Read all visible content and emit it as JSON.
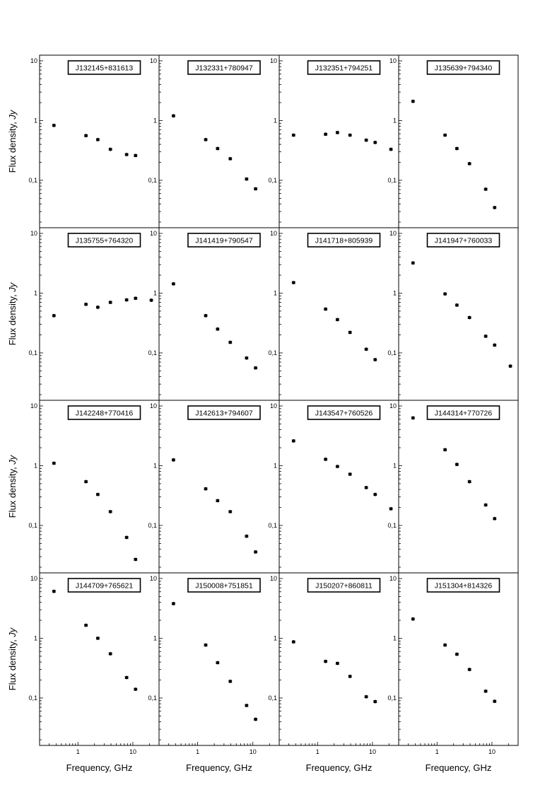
{
  "figure": {
    "ylabel_text": "Flux density, ",
    "ylabel_unit": "Jy",
    "xlabel": "Frequency, GHz"
  },
  "chart_data": [
    {
      "type": "scatter",
      "title": "J132145+831613",
      "x": [
        0.365,
        1.4,
        2.3,
        3.9,
        7.7,
        11.2
      ],
      "y": [
        0.83,
        0.56,
        0.48,
        0.33,
        0.27,
        0.26
      ],
      "xlim": [
        0.2,
        30
      ],
      "ylim": [
        0.02,
        10
      ],
      "xscale": "log",
      "yscale": "log",
      "yticks": [
        "10",
        "1",
        "0,1"
      ],
      "xticks": [
        "1",
        "10"
      ],
      "xlabel": "Frequency, GHz",
      "ylabel": "Flux density, Jy"
    },
    {
      "type": "scatter",
      "title": "J132331+780947",
      "x": [
        0.365,
        1.4,
        2.3,
        3.9,
        7.7,
        11.2
      ],
      "y": [
        1.2,
        0.48,
        0.34,
        0.23,
        0.105,
        0.072
      ],
      "xlim": [
        0.2,
        30
      ],
      "ylim": [
        0.02,
        10
      ],
      "xscale": "log",
      "yscale": "log",
      "yticks": [
        "10",
        "1",
        "0,1"
      ],
      "xticks": [
        "1",
        "10"
      ],
      "xlabel": "Frequency, GHz",
      "ylabel": "Flux density, Jy"
    },
    {
      "type": "scatter",
      "title": "J132351+794251",
      "x": [
        0.365,
        1.4,
        2.3,
        3.9,
        7.7,
        11.2,
        21.7
      ],
      "y": [
        0.57,
        0.59,
        0.63,
        0.57,
        0.47,
        0.43,
        0.33
      ],
      "xlim": [
        0.2,
        30
      ],
      "ylim": [
        0.02,
        10
      ],
      "xscale": "log",
      "yscale": "log",
      "yticks": [
        "10",
        "1",
        "0,1"
      ],
      "xticks": [
        "1",
        "10"
      ],
      "xlabel": "Frequency, GHz",
      "ylabel": "Flux density, Jy"
    },
    {
      "type": "scatter",
      "title": "J135639+794340",
      "x": [
        0.365,
        1.4,
        2.3,
        3.9,
        7.7,
        11.2
      ],
      "y": [
        2.1,
        0.57,
        0.34,
        0.19,
        0.071,
        0.035
      ],
      "xlim": [
        0.2,
        30
      ],
      "ylim": [
        0.02,
        10
      ],
      "xscale": "log",
      "yscale": "log",
      "yticks": [
        "10",
        "1",
        "0,1"
      ],
      "xticks": [
        "1",
        "10"
      ],
      "xlabel": "Frequency, GHz",
      "ylabel": "Flux density, Jy"
    },
    {
      "type": "scatter",
      "title": "J135755+764320",
      "x": [
        0.365,
        1.4,
        2.3,
        3.9,
        7.7,
        11.2,
        21.7
      ],
      "y": [
        0.42,
        0.65,
        0.58,
        0.7,
        0.77,
        0.82,
        0.76
      ],
      "xlim": [
        0.2,
        30
      ],
      "ylim": [
        0.02,
        10
      ],
      "xscale": "log",
      "yscale": "log",
      "yticks": [
        "10",
        "1",
        "0,1"
      ],
      "xticks": [
        "1",
        "10"
      ],
      "xlabel": "Frequency, GHz",
      "ylabel": "Flux density, Jy"
    },
    {
      "type": "scatter",
      "title": "J141419+790547",
      "x": [
        0.365,
        1.4,
        2.3,
        3.9,
        7.7,
        11.2
      ],
      "y": [
        1.43,
        0.42,
        0.25,
        0.15,
        0.082,
        0.056
      ],
      "xlim": [
        0.2,
        30
      ],
      "ylim": [
        0.02,
        10
      ],
      "xscale": "log",
      "yscale": "log",
      "yticks": [
        "10",
        "1",
        "0,1"
      ],
      "xticks": [
        "1",
        "10"
      ],
      "xlabel": "Frequency, GHz",
      "ylabel": "Flux density, Jy"
    },
    {
      "type": "scatter",
      "title": "J141718+805939",
      "x": [
        0.365,
        1.4,
        2.3,
        3.9,
        7.7,
        11.2
      ],
      "y": [
        1.5,
        0.54,
        0.36,
        0.22,
        0.115,
        0.077
      ],
      "xlim": [
        0.2,
        30
      ],
      "ylim": [
        0.02,
        10
      ],
      "xscale": "log",
      "yscale": "log",
      "yticks": [
        "10",
        "1",
        "0,1"
      ],
      "xticks": [
        "1",
        "10"
      ],
      "xlabel": "Frequency, GHz",
      "ylabel": "Flux density, Jy"
    },
    {
      "type": "scatter",
      "title": "J141947+760033",
      "x": [
        0.365,
        1.4,
        2.3,
        3.9,
        7.7,
        11.2,
        21.7
      ],
      "y": [
        3.2,
        0.97,
        0.63,
        0.39,
        0.19,
        0.135,
        0.06
      ],
      "xlim": [
        0.2,
        30
      ],
      "ylim": [
        0.02,
        10
      ],
      "xscale": "log",
      "yscale": "log",
      "yticks": [
        "10",
        "1",
        "0,1"
      ],
      "xticks": [
        "1",
        "10"
      ],
      "xlabel": "Frequency, GHz",
      "ylabel": "Flux density, Jy"
    },
    {
      "type": "scatter",
      "title": "J142248+770416",
      "x": [
        0.365,
        1.4,
        2.3,
        3.9,
        7.7,
        11.2
      ],
      "y": [
        1.1,
        0.54,
        0.33,
        0.17,
        0.063,
        0.027
      ],
      "xlim": [
        0.2,
        30
      ],
      "ylim": [
        0.02,
        10
      ],
      "xscale": "log",
      "yscale": "log",
      "yticks": [
        "10",
        "1",
        "0,1"
      ],
      "xticks": [
        "1",
        "10"
      ],
      "xlabel": "Frequency, GHz",
      "ylabel": "Flux density, Jy"
    },
    {
      "type": "scatter",
      "title": "J142613+794607",
      "x": [
        0.365,
        1.4,
        2.3,
        3.9,
        7.7,
        11.2
      ],
      "y": [
        1.25,
        0.41,
        0.26,
        0.17,
        0.066,
        0.036
      ],
      "xlim": [
        0.2,
        30
      ],
      "ylim": [
        0.02,
        10
      ],
      "xscale": "log",
      "yscale": "log",
      "yticks": [
        "10",
        "1",
        "0,1"
      ],
      "xticks": [
        "1",
        "10"
      ],
      "xlabel": "Frequency, GHz",
      "ylabel": "Flux density, Jy"
    },
    {
      "type": "scatter",
      "title": "J143547+760526",
      "x": [
        0.365,
        1.4,
        2.3,
        3.9,
        7.7,
        11.2,
        21.7
      ],
      "y": [
        2.6,
        1.28,
        0.97,
        0.72,
        0.43,
        0.33,
        0.19
      ],
      "xlim": [
        0.2,
        30
      ],
      "ylim": [
        0.02,
        10
      ],
      "xscale": "log",
      "yscale": "log",
      "yticks": [
        "10",
        "1",
        "0,1"
      ],
      "xticks": [
        "1",
        "10"
      ],
      "xlabel": "Frequency, GHz",
      "ylabel": "Flux density, Jy"
    },
    {
      "type": "scatter",
      "title": "J144314+770726",
      "x": [
        0.365,
        1.4,
        2.3,
        3.9,
        7.7,
        11.2
      ],
      "y": [
        6.3,
        1.85,
        1.05,
        0.54,
        0.22,
        0.13
      ],
      "xlim": [
        0.2,
        30
      ],
      "ylim": [
        0.02,
        10
      ],
      "xscale": "log",
      "yscale": "log",
      "yticks": [
        "10",
        "1",
        "0,1"
      ],
      "xticks": [
        "1",
        "10"
      ],
      "xlabel": "Frequency, GHz",
      "ylabel": "Flux density, Jy"
    },
    {
      "type": "scatter",
      "title": "J144709+765621",
      "x": [
        0.365,
        1.4,
        2.3,
        3.9,
        7.7,
        11.2
      ],
      "y": [
        6.1,
        1.65,
        1.0,
        0.55,
        0.22,
        0.14
      ],
      "xlim": [
        0.2,
        30
      ],
      "ylim": [
        0.02,
        10
      ],
      "xscale": "log",
      "yscale": "log",
      "yticks": [
        "10",
        "1",
        "0,1"
      ],
      "xticks": [
        "1",
        "10"
      ],
      "xlabel": "Frequency, GHz",
      "ylabel": "Flux density, Jy"
    },
    {
      "type": "scatter",
      "title": "J150008+751851",
      "x": [
        0.365,
        1.4,
        2.3,
        3.9,
        7.7,
        11.2
      ],
      "y": [
        3.8,
        0.77,
        0.39,
        0.19,
        0.075,
        0.044
      ],
      "xlim": [
        0.2,
        30
      ],
      "ylim": [
        0.02,
        10
      ],
      "xscale": "log",
      "yscale": "log",
      "yticks": [
        "10",
        "1",
        "0,1"
      ],
      "xticks": [
        "1",
        "10"
      ],
      "xlabel": "Frequency, GHz",
      "ylabel": "Flux density, Jy"
    },
    {
      "type": "scatter",
      "title": "J150207+860811",
      "x": [
        0.365,
        1.4,
        2.3,
        3.9,
        7.7,
        11.2
      ],
      "y": [
        0.87,
        0.41,
        0.38,
        0.23,
        0.105,
        0.087
      ],
      "xlim": [
        0.2,
        30
      ],
      "ylim": [
        0.02,
        10
      ],
      "xscale": "log",
      "yscale": "log",
      "yticks": [
        "10",
        "1",
        "0,1"
      ],
      "xticks": [
        "1",
        "10"
      ],
      "xlabel": "Frequency, GHz",
      "ylabel": "Flux density, Jy"
    },
    {
      "type": "scatter",
      "title": "J151304+814326",
      "x": [
        0.365,
        1.4,
        2.3,
        3.9,
        7.7,
        11.2
      ],
      "y": [
        2.1,
        0.77,
        0.54,
        0.3,
        0.13,
        0.088
      ],
      "xlim": [
        0.2,
        30
      ],
      "ylim": [
        0.02,
        10
      ],
      "xscale": "log",
      "yscale": "log",
      "yticks": [
        "10",
        "1",
        "0,1"
      ],
      "xticks": [
        "1",
        "10"
      ],
      "xlabel": "Frequency, GHz",
      "ylabel": "Flux density, Jy"
    }
  ]
}
